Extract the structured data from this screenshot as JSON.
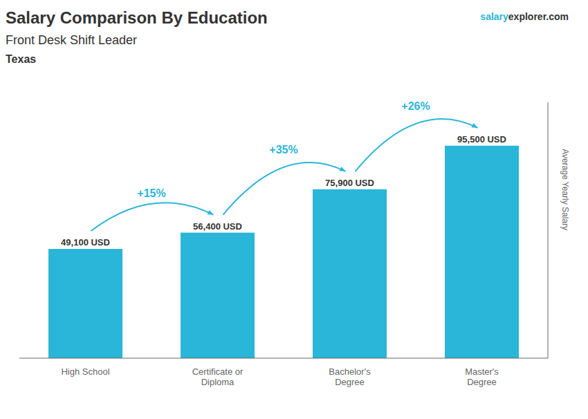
{
  "chart_data": {
    "type": "bar",
    "title": "Salary Comparison By Education",
    "subtitle": "Front Desk Shift Leader",
    "location": "Texas",
    "watermark": [
      "salary",
      "explorer",
      ".com"
    ],
    "ylabel": "Average Yearly Salary",
    "categories": [
      "High School",
      "Certificate or\nDiploma",
      "Bachelor's\nDegree",
      "Master's\nDegree"
    ],
    "values": [
      49100,
      56400,
      75900,
      95500
    ],
    "value_labels": [
      "49,100 USD",
      "56,400 USD",
      "75,900 USD",
      "95,500 USD"
    ],
    "data_labels": true,
    "annotations": [
      "+15%",
      "+35%",
      "+26%"
    ],
    "color": "#29b6d8",
    "ylim": [
      0,
      115000
    ],
    "tick_labels": "x"
  }
}
